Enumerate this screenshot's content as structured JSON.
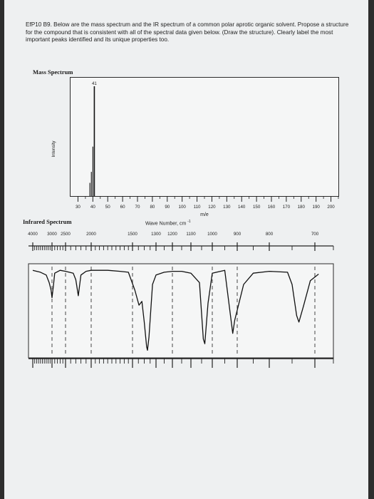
{
  "question": "EfP10 B9. Below are the mass spectrum and the IR spectrum of a common polar aprotic organic solvent. Propose a structure for the compound that is consistent with all of the spectral data given below. (Draw the structure). Clearly label the most important peaks identified and its unique properties too.",
  "chart_data": [
    {
      "type": "bar",
      "title": "Mass Spectrum",
      "xlabel": "m/e",
      "ylabel": "Intensity",
      "xlim": [
        25,
        205
      ],
      "x_ticks": [
        30,
        40,
        50,
        60,
        70,
        80,
        90,
        100,
        110,
        120,
        130,
        140,
        150,
        160,
        170,
        180,
        190,
        200
      ],
      "peaks": [
        {
          "mz": 38,
          "intensity": 12
        },
        {
          "mz": 39,
          "intensity": 22
        },
        {
          "mz": 40,
          "intensity": 45
        },
        {
          "mz": 41,
          "intensity": 100,
          "label": "41"
        }
      ],
      "ylim": [
        0,
        100
      ]
    },
    {
      "type": "line",
      "title": "Infrared Spectrum",
      "xlabel": "Wave Number, cm",
      "xlabel_superscript": "-1",
      "tick_labels": [
        "4000",
        "3000",
        "2500",
        "2000",
        "1500",
        "1300",
        "1200",
        "1100",
        "1000",
        "900",
        "800",
        "700"
      ],
      "tick_values": [
        4000,
        3000,
        2500,
        2000,
        1500,
        1300,
        1200,
        1100,
        1000,
        900,
        800,
        700
      ],
      "dashed_gridlines": [
        3000,
        2500,
        2000,
        1500,
        1200,
        1000,
        900,
        700
      ],
      "trace_unit": "transmittance, percent",
      "trace": [
        [
          4000,
          93
        ],
        [
          3600,
          91
        ],
        [
          3300,
          88
        ],
        [
          3150,
          80
        ],
        [
          3050,
          72
        ],
        [
          3000,
          64
        ],
        [
          2950,
          76
        ],
        [
          2900,
          90
        ],
        [
          2700,
          93
        ],
        [
          2500,
          92
        ],
        [
          2350,
          90
        ],
        [
          2300,
          83
        ],
        [
          2252,
          66
        ],
        [
          2200,
          88
        ],
        [
          2100,
          92
        ],
        [
          2000,
          93
        ],
        [
          1900,
          93
        ],
        [
          1800,
          93
        ],
        [
          1650,
          92
        ],
        [
          1550,
          91
        ],
        [
          1480,
          72
        ],
        [
          1445,
          56
        ],
        [
          1420,
          60
        ],
        [
          1400,
          38
        ],
        [
          1380,
          12
        ],
        [
          1373,
          8
        ],
        [
          1360,
          22
        ],
        [
          1330,
          78
        ],
        [
          1300,
          88
        ],
        [
          1250,
          91
        ],
        [
          1200,
          92
        ],
        [
          1150,
          92
        ],
        [
          1100,
          90
        ],
        [
          1060,
          80
        ],
        [
          1042,
          20
        ],
        [
          1035,
          15
        ],
        [
          1020,
          58
        ],
        [
          1000,
          90
        ],
        [
          950,
          93
        ],
        [
          918,
          26
        ],
        [
          910,
          40
        ],
        [
          880,
          78
        ],
        [
          850,
          90
        ],
        [
          800,
          92
        ],
        [
          760,
          91
        ],
        [
          750,
          78
        ],
        [
          740,
          45
        ],
        [
          735,
          38
        ],
        [
          725,
          55
        ],
        [
          710,
          82
        ],
        [
          690,
          89
        ]
      ],
      "ylim": [
        0,
        100
      ]
    }
  ]
}
